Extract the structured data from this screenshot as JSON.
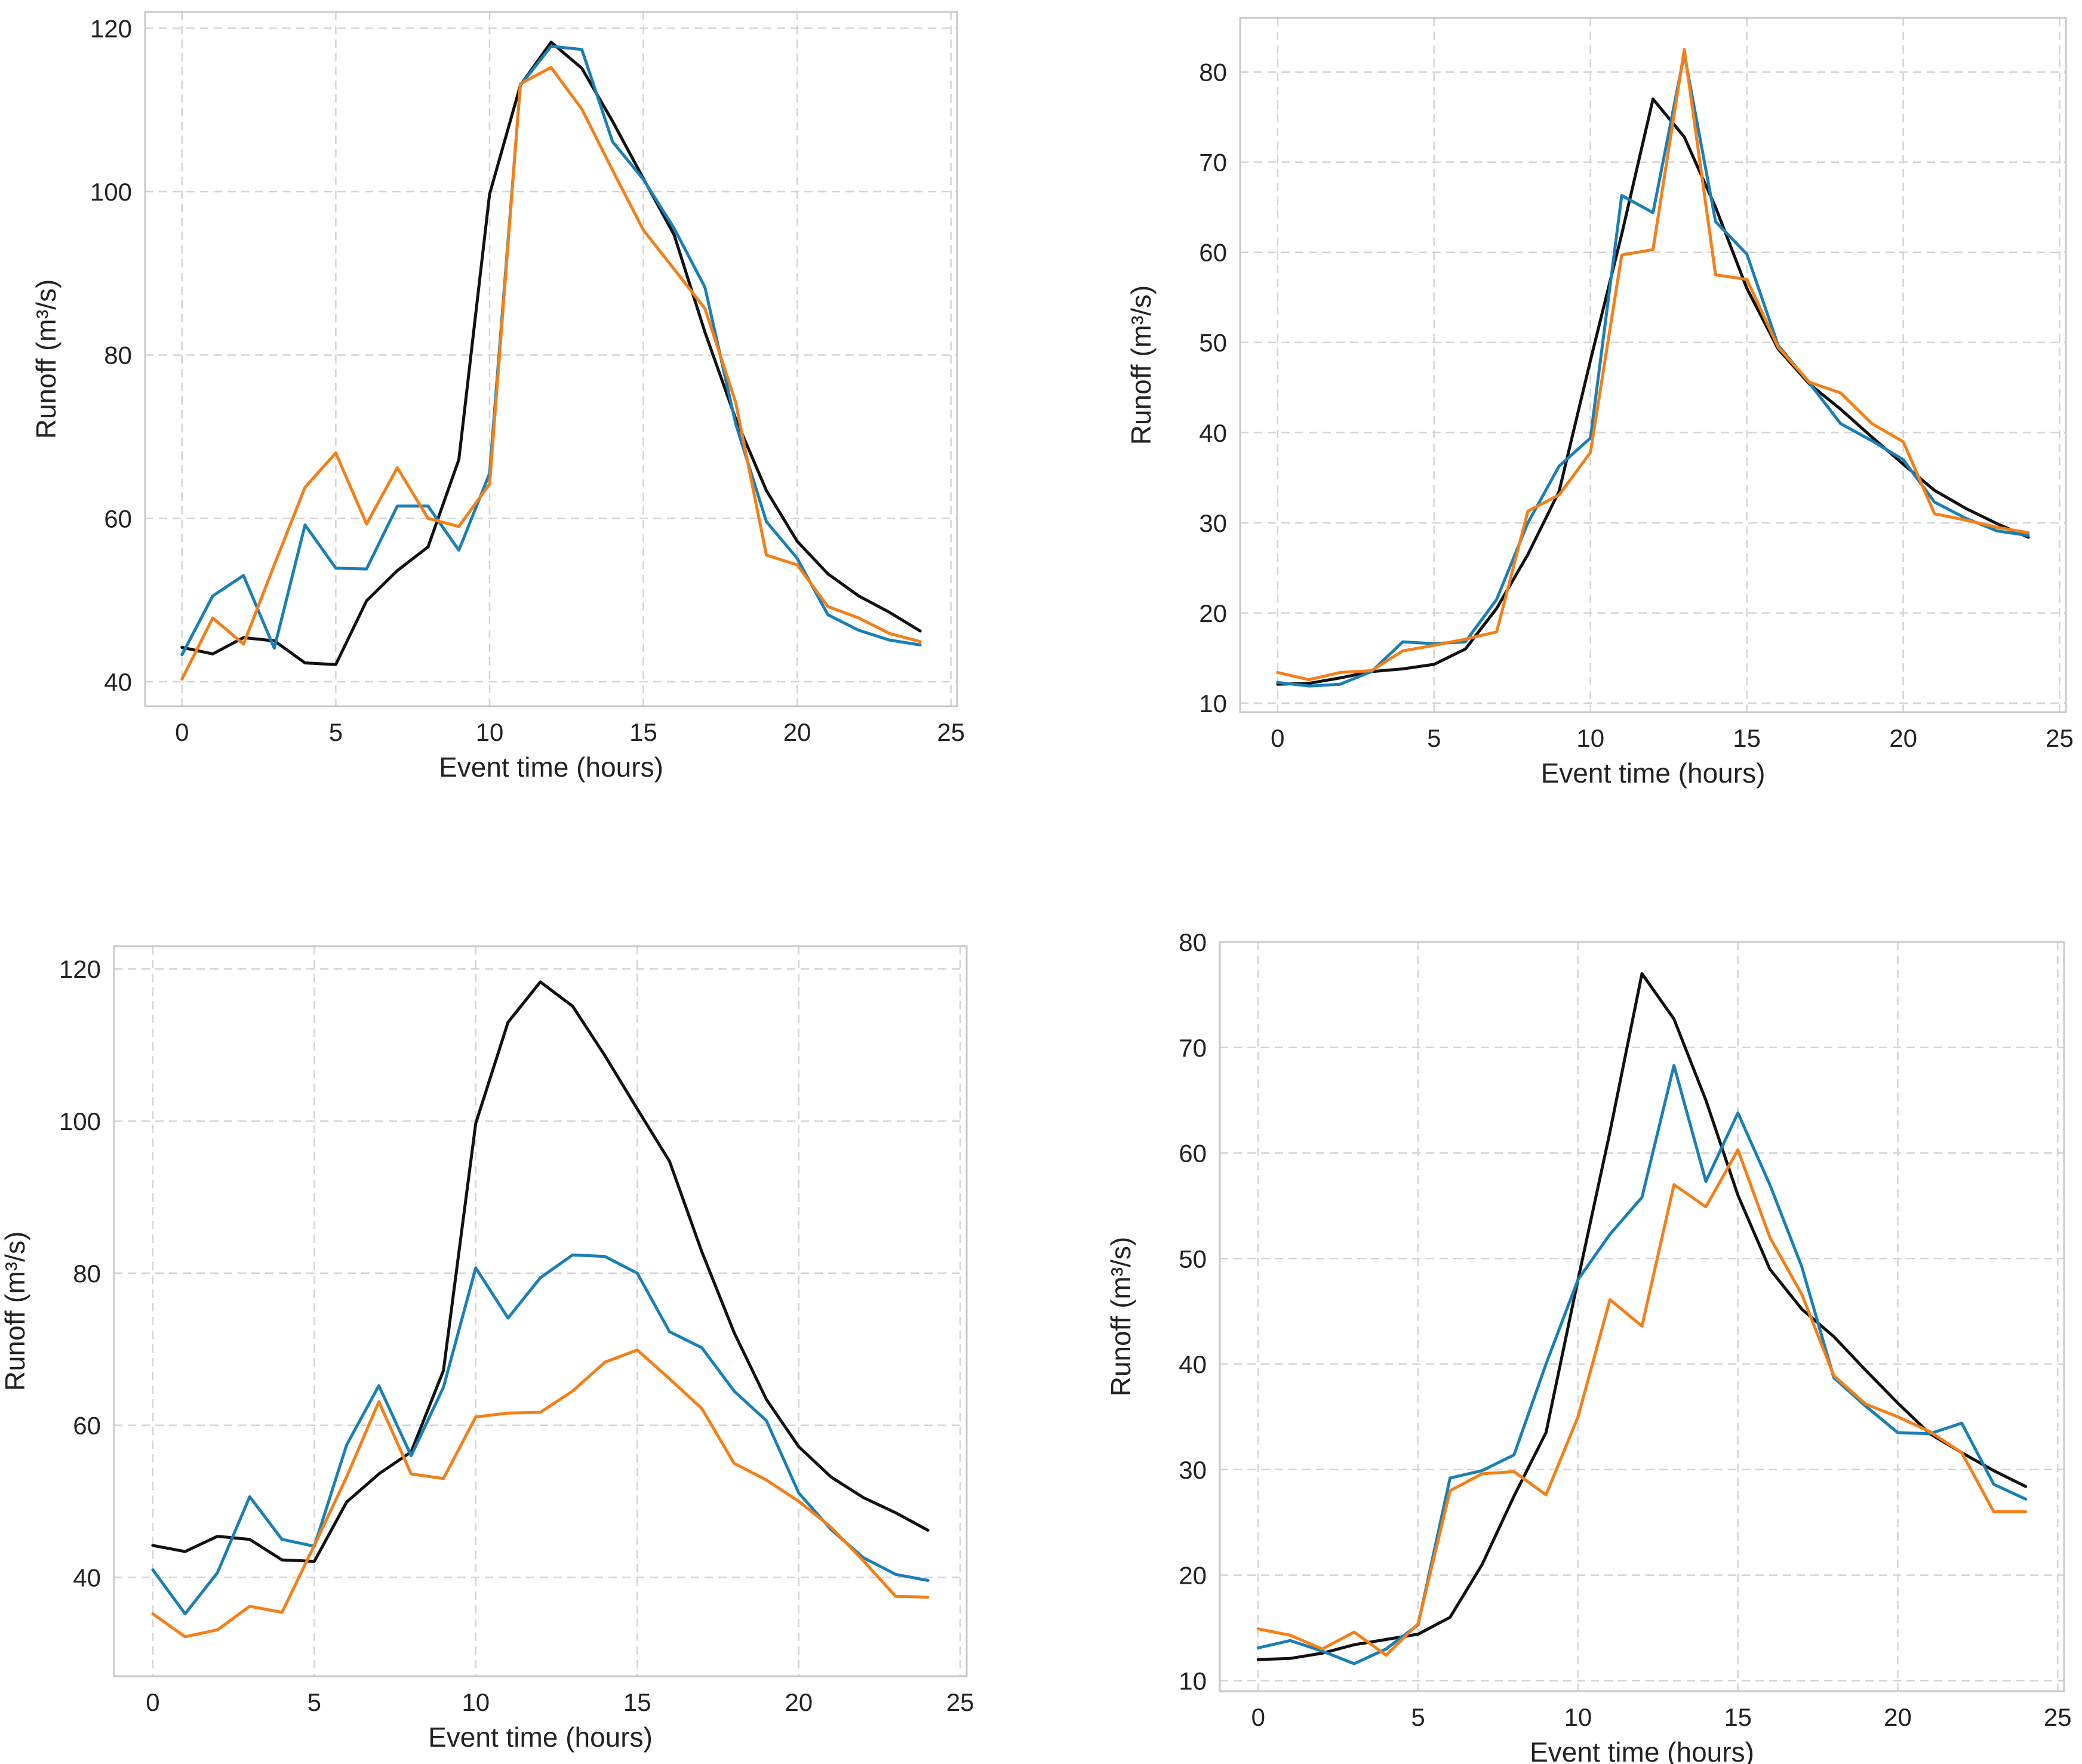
{
  "colors": {
    "black_series": "#111111",
    "blue_series": "#1a7fb6",
    "orange_series": "#f57f17",
    "grid": "#d4d4d4",
    "frame": "#c8c8c8"
  },
  "chart_data": [
    {
      "type": "line",
      "xlabel": "Event time (hours)",
      "ylabel": "Runoff (m³/s)",
      "xlim": [
        -1.2,
        25.2
      ],
      "ylim": [
        37,
        122
      ],
      "xticks": [
        0,
        5,
        10,
        15,
        20,
        25
      ],
      "yticks": [
        40,
        60,
        80,
        100,
        120
      ],
      "grid": true,
      "x": [
        0,
        1,
        2,
        3,
        4,
        5,
        6,
        7,
        8,
        9,
        10,
        11,
        12,
        13,
        14,
        15,
        16,
        17,
        18,
        19,
        20,
        21,
        22,
        23,
        24
      ],
      "series": [
        {
          "name": "black",
          "color": "#111111",
          "values": [
            44.2,
            43.4,
            45.4,
            45.0,
            42.3,
            42.1,
            49.9,
            53.6,
            56.5,
            67.2,
            99.7,
            113.0,
            118.3,
            115.1,
            108.6,
            101.6,
            94.7,
            82.8,
            72.2,
            63.4,
            57.2,
            53.2,
            50.5,
            48.5,
            46.2
          ]
        },
        {
          "name": "blue",
          "color": "#1a7fb6",
          "values": [
            43.3,
            50.5,
            53.0,
            44.1,
            59.2,
            53.9,
            53.8,
            61.5,
            61.5,
            56.1,
            65.5,
            113.0,
            117.8,
            117.4,
            106.1,
            101.5,
            95.5,
            88.3,
            71.6,
            59.6,
            55.1,
            48.2,
            46.3,
            45.1,
            44.5
          ]
        },
        {
          "name": "orange",
          "color": "#f57f17",
          "values": [
            40.3,
            47.8,
            44.6,
            54.3,
            63.8,
            68.0,
            59.3,
            66.2,
            60.0,
            59.0,
            64.2,
            113.2,
            115.2,
            110.1,
            102.6,
            95.3,
            90.5,
            85.7,
            74.2,
            55.5,
            54.3,
            49.2,
            47.8,
            45.9,
            44.9
          ]
        }
      ]
    },
    {
      "type": "line",
      "xlabel": "Event time (hours)",
      "ylabel": "Runoff (m³/s)",
      "xlim": [
        -1.2,
        25.2
      ],
      "ylim": [
        9,
        86
      ],
      "xticks": [
        0,
        5,
        10,
        15,
        20,
        25
      ],
      "yticks": [
        10,
        20,
        30,
        40,
        50,
        60,
        70,
        80
      ],
      "grid": true,
      "x": [
        0,
        1,
        2,
        3,
        4,
        5,
        6,
        7,
        8,
        9,
        10,
        11,
        12,
        13,
        14,
        15,
        16,
        17,
        18,
        19,
        20,
        21,
        22,
        23,
        24
      ],
      "series": [
        {
          "name": "black",
          "color": "#111111",
          "values": [
            12.1,
            12.2,
            12.8,
            13.5,
            13.8,
            14.3,
            16.0,
            20.5,
            26.5,
            33.5,
            48.0,
            62.0,
            77.0,
            72.8,
            65.0,
            56.0,
            49.3,
            45.4,
            42.6,
            39.5,
            36.5,
            33.6,
            31.6,
            29.9,
            28.4
          ]
        },
        {
          "name": "blue",
          "color": "#1a7fb6",
          "values": [
            12.3,
            11.9,
            12.1,
            13.5,
            16.8,
            16.6,
            16.8,
            21.5,
            30.0,
            36.3,
            39.4,
            66.3,
            64.4,
            82.0,
            63.4,
            59.8,
            49.7,
            45.5,
            41.0,
            39.1,
            37.0,
            32.3,
            30.5,
            29.1,
            28.6
          ]
        },
        {
          "name": "orange",
          "color": "#f57f17",
          "values": [
            13.4,
            12.6,
            13.4,
            13.6,
            15.8,
            16.4,
            17.1,
            17.9,
            31.3,
            33.1,
            37.8,
            59.7,
            60.3,
            82.5,
            57.5,
            57.0,
            49.5,
            45.6,
            44.4,
            41.0,
            39.0,
            31.0,
            30.3,
            29.5,
            28.9
          ]
        }
      ]
    },
    {
      "type": "line",
      "xlabel": "Event time (hours)",
      "ylabel": "Runoff (m³/s)",
      "xlim": [
        -1.2,
        25.2
      ],
      "ylim": [
        27,
        123
      ],
      "xticks": [
        0,
        5,
        10,
        15,
        20,
        25
      ],
      "yticks": [
        40,
        60,
        80,
        100,
        120
      ],
      "grid": true,
      "x": [
        0,
        1,
        2,
        3,
        4,
        5,
        6,
        7,
        8,
        9,
        10,
        11,
        12,
        13,
        14,
        15,
        16,
        17,
        18,
        19,
        20,
        21,
        22,
        23,
        24
      ],
      "series": [
        {
          "name": "black",
          "color": "#111111",
          "values": [
            44.2,
            43.4,
            45.4,
            45.0,
            42.3,
            42.1,
            49.9,
            53.6,
            56.5,
            67.2,
            99.7,
            113.0,
            118.3,
            115.1,
            108.6,
            101.6,
            94.7,
            82.8,
            72.2,
            63.4,
            57.2,
            53.2,
            50.5,
            48.5,
            46.2
          ]
        },
        {
          "name": "blue",
          "color": "#1a7fb6",
          "values": [
            41.0,
            35.2,
            40.6,
            50.6,
            45.0,
            44.1,
            57.4,
            65.2,
            56.0,
            65.0,
            80.7,
            74.1,
            79.4,
            82.4,
            82.2,
            80.0,
            72.3,
            70.2,
            64.5,
            60.6,
            51.1,
            46.3,
            42.6,
            40.4,
            39.6
          ]
        },
        {
          "name": "orange",
          "color": "#f57f17",
          "values": [
            35.2,
            32.2,
            33.1,
            36.2,
            35.4,
            44.2,
            53.2,
            63.1,
            53.6,
            53.0,
            61.1,
            61.6,
            61.7,
            64.5,
            68.3,
            69.9,
            66.1,
            62.2,
            55.0,
            52.8,
            50.0,
            46.6,
            42.2,
            37.5,
            37.4
          ]
        }
      ]
    },
    {
      "type": "line",
      "xlabel": "Event time (hours)",
      "ylabel": "Runoff (m³/s)",
      "xlim": [
        -1.2,
        25.2
      ],
      "ylim": [
        9,
        80
      ],
      "xticks": [
        0,
        5,
        10,
        15,
        20,
        25
      ],
      "yticks": [
        10,
        20,
        30,
        40,
        50,
        60,
        70,
        80
      ],
      "grid": true,
      "x": [
        0,
        1,
        2,
        3,
        4,
        5,
        6,
        7,
        8,
        9,
        10,
        11,
        12,
        13,
        14,
        15,
        16,
        17,
        18,
        19,
        20,
        21,
        22,
        23,
        24
      ],
      "series": [
        {
          "name": "black",
          "color": "#111111",
          "values": [
            12.0,
            12.1,
            12.6,
            13.4,
            13.9,
            14.4,
            16.0,
            21.0,
            27.5,
            33.5,
            48.0,
            62.0,
            77.0,
            72.7,
            65.0,
            56.0,
            49.0,
            45.2,
            42.6,
            39.4,
            36.3,
            33.4,
            31.6,
            29.9,
            28.4
          ]
        },
        {
          "name": "blue",
          "color": "#1a7fb6",
          "values": [
            13.1,
            13.8,
            12.8,
            11.6,
            13.0,
            15.3,
            29.2,
            29.9,
            31.4,
            40.0,
            48.0,
            52.3,
            55.8,
            68.3,
            57.3,
            63.8,
            57.0,
            49.2,
            38.7,
            36.0,
            33.5,
            33.4,
            34.4,
            28.6,
            27.2
          ]
        },
        {
          "name": "orange",
          "color": "#f57f17",
          "values": [
            14.9,
            14.3,
            13.0,
            14.6,
            12.4,
            15.4,
            28.0,
            29.6,
            29.8,
            27.6,
            35.0,
            46.1,
            43.6,
            57.0,
            54.9,
            60.3,
            52.0,
            46.6,
            38.9,
            36.2,
            35.0,
            33.6,
            31.6,
            26.0,
            26.0
          ]
        }
      ]
    }
  ]
}
